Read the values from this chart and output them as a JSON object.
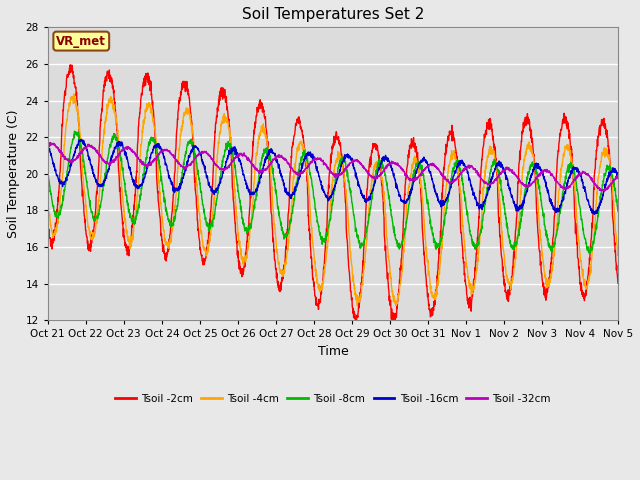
{
  "title": "Soil Temperatures Set 2",
  "xlabel": "Time",
  "ylabel": "Soil Temperature (C)",
  "ylim": [
    12,
    28
  ],
  "yticks": [
    12,
    14,
    16,
    18,
    20,
    22,
    24,
    26,
    28
  ],
  "fig_facecolor": "#e8e8e8",
  "plot_bg_color": "#dcdcdc",
  "annotation_text": "VR_met",
  "annotation_box_color": "#ffff99",
  "annotation_border_color": "#8B4513",
  "series": [
    {
      "label": "Tsoil -2cm",
      "color": "#ff0000"
    },
    {
      "label": "Tsoil -4cm",
      "color": "#ffa500"
    },
    {
      "label": "Tsoil -8cm",
      "color": "#00bb00"
    },
    {
      "label": "Tsoil -16cm",
      "color": "#0000cc"
    },
    {
      "label": "Tsoil -32cm",
      "color": "#bb00bb"
    }
  ],
  "xtick_labels": [
    "Oct 21",
    "Oct 22",
    "Oct 23",
    "Oct 24",
    "Oct 25",
    "Oct 26",
    "Oct 27",
    "Oct 28",
    "Oct 29",
    "Oct 30",
    "Oct 31",
    "Nov 1",
    "Nov 2",
    "Nov 3",
    "Nov 4",
    "Nov 5"
  ],
  "num_days": 15,
  "points_per_day": 144
}
